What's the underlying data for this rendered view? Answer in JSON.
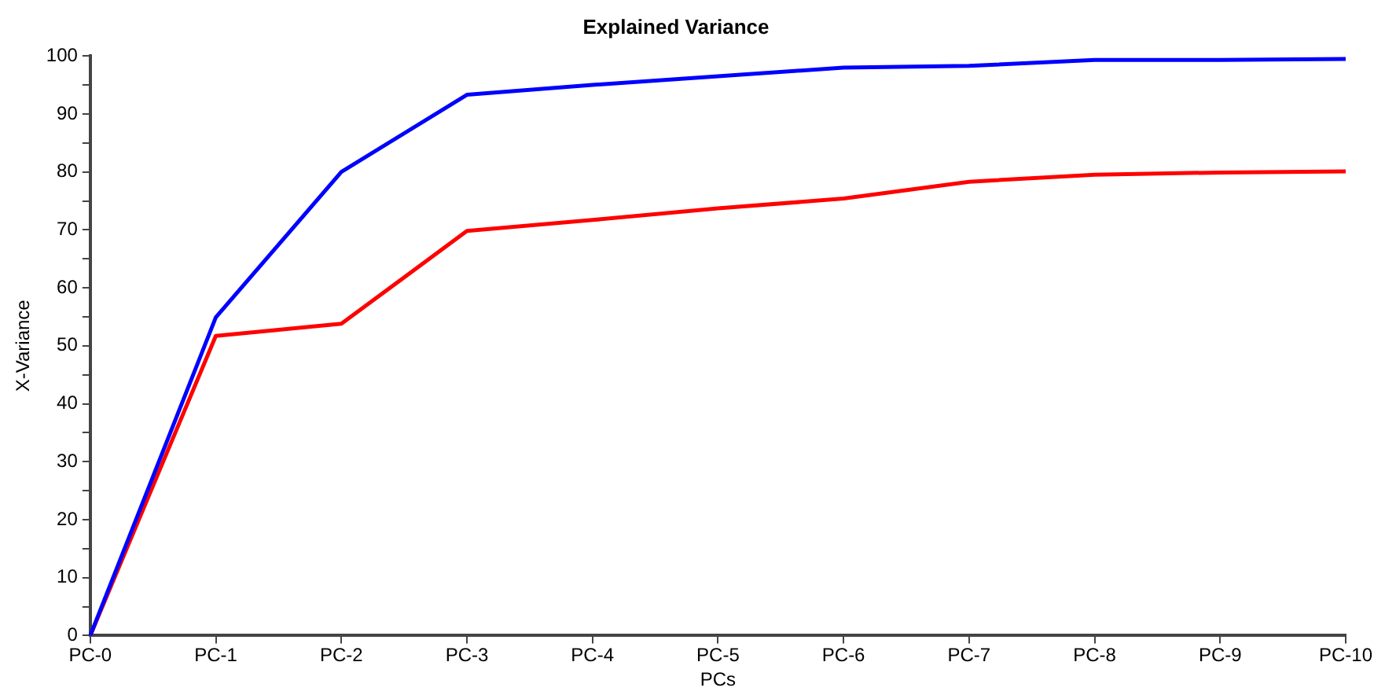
{
  "chart_data": {
    "type": "line",
    "title": "Explained Variance",
    "xlabel": "PCs",
    "ylabel": "X-Variance",
    "categories": [
      "PC-0",
      "PC-1",
      "PC-2",
      "PC-3",
      "PC-4",
      "PC-5",
      "PC-6",
      "PC-7",
      "PC-8",
      "PC-9",
      "PC-10"
    ],
    "series": [
      {
        "color": "#0000ff",
        "values": [
          0,
          54.9,
          80.0,
          93.3,
          95.0,
          96.5,
          98.0,
          98.3,
          99.3,
          99.3,
          99.5
        ]
      },
      {
        "color": "#ff0000",
        "values": [
          0,
          51.7,
          53.8,
          69.8,
          71.7,
          73.7,
          75.4,
          78.3,
          79.5,
          79.9,
          80.1
        ]
      }
    ],
    "ylim": [
      0,
      100
    ],
    "yticks": [
      0,
      {
        "value": 5,
        "label": null
      },
      10,
      {
        "value": 15,
        "label": null
      },
      20,
      {
        "value": 25,
        "label": null
      },
      30,
      {
        "value": 35,
        "label": null
      },
      40,
      {
        "value": 45,
        "label": null
      },
      50,
      {
        "value": 55,
        "label": null
      },
      60,
      {
        "value": 65,
        "label": null
      },
      70,
      {
        "value": 75,
        "label": null
      },
      80,
      {
        "value": 85,
        "label": null
      },
      90,
      {
        "value": 95,
        "label": null
      },
      100
    ],
    "grid": false,
    "legend": false,
    "marker": "none",
    "line_style": "solid"
  }
}
